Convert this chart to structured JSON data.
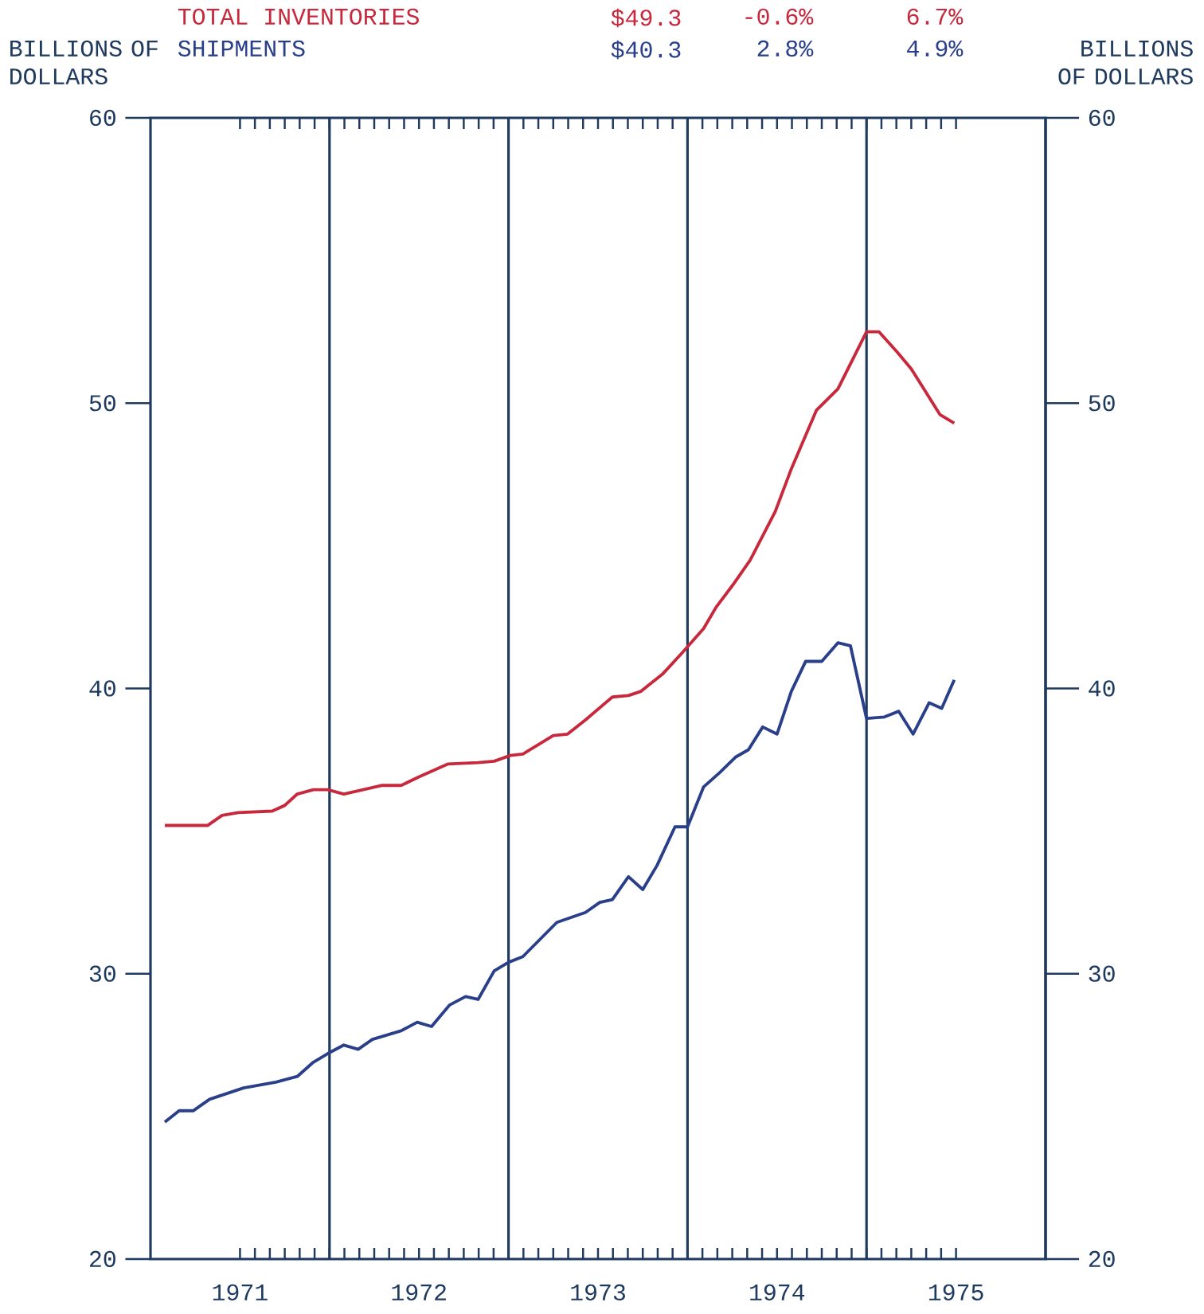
{
  "chart_data": {
    "type": "line",
    "ylabel": "BILLIONS OF DOLLARS",
    "y2label": "BILLIONS OF DOLLARS",
    "series": [
      {
        "name": "TOTAL INVENTORIES",
        "color": "#c8283c",
        "x": [
          1971.08,
          1971.32,
          1971.4,
          1971.49,
          1971.68,
          1971.75,
          1971.82,
          1971.91,
          1971.99,
          1972.08,
          1972.29,
          1972.4,
          1972.5,
          1972.66,
          1972.83,
          1972.92,
          1973.01,
          1973.08,
          1973.25,
          1973.33,
          1973.43,
          1973.58,
          1973.67,
          1973.74,
          1973.86,
          1973.97,
          1974.09,
          1974.16,
          1974.25,
          1974.35,
          1974.49,
          1974.58,
          1974.72,
          1974.84,
          1975.0,
          1975.07,
          1975.17,
          1975.25,
          1975.32,
          1975.41,
          1975.49
        ],
        "values": [
          35.2,
          35.2,
          35.55,
          35.65,
          35.7,
          35.9,
          36.3,
          36.45,
          36.45,
          36.3,
          36.6,
          36.6,
          36.9,
          37.35,
          37.4,
          37.45,
          37.65,
          37.7,
          38.35,
          38.4,
          38.9,
          39.7,
          39.75,
          39.9,
          40.5,
          41.25,
          42.1,
          42.85,
          43.6,
          44.5,
          46.2,
          47.7,
          49.75,
          50.5,
          52.5,
          52.5,
          51.8,
          51.2,
          50.5,
          49.6,
          49.3
        ]
      },
      {
        "name": "SHIPMENTS",
        "color": "#2a3f8a",
        "x": [
          1971.08,
          1971.16,
          1971.24,
          1971.33,
          1971.52,
          1971.7,
          1971.82,
          1971.91,
          1971.99,
          1972.08,
          1972.16,
          1972.24,
          1972.4,
          1972.49,
          1972.57,
          1972.67,
          1972.76,
          1972.83,
          1972.92,
          1973.0,
          1973.08,
          1973.27,
          1973.43,
          1973.51,
          1973.58,
          1973.67,
          1973.75,
          1973.83,
          1973.93,
          1974.0,
          1974.09,
          1974.18,
          1974.27,
          1974.34,
          1974.42,
          1974.5,
          1974.58,
          1974.66,
          1974.75,
          1974.84,
          1974.91,
          1975.0,
          1975.1,
          1975.18,
          1975.26,
          1975.35,
          1975.42,
          1975.49
        ],
        "values": [
          24.8,
          25.2,
          25.2,
          25.6,
          26.0,
          26.2,
          26.4,
          26.9,
          27.2,
          27.5,
          27.35,
          27.7,
          28.0,
          28.3,
          28.15,
          28.9,
          29.2,
          29.1,
          30.1,
          30.4,
          30.6,
          31.8,
          32.15,
          32.5,
          32.6,
          33.4,
          32.95,
          33.8,
          35.15,
          35.15,
          36.55,
          37.05,
          37.6,
          37.85,
          38.65,
          38.4,
          39.9,
          40.95,
          40.95,
          41.6,
          41.5,
          38.95,
          39.0,
          39.2,
          38.4,
          39.5,
          39.3,
          40.3
        ]
      }
    ],
    "xlim": [
      1971,
      1976
    ],
    "xticks": [
      {
        "value": 1971.5,
        "label": "1971"
      },
      {
        "value": 1972.5,
        "label": "1972"
      },
      {
        "value": 1973.5,
        "label": "1973"
      },
      {
        "value": 1974.5,
        "label": "1974"
      },
      {
        "value": 1975.5,
        "label": "1975"
      }
    ],
    "ylim": [
      20,
      60
    ],
    "yticks": [
      20,
      30,
      40,
      50,
      60
    ],
    "y2lim": [
      20,
      60
    ],
    "y2ticks": [
      20,
      30,
      40,
      50,
      60
    ],
    "ref_lines": [
      {
        "axis": "x",
        "value": 1972,
        "color": "#1f3a5f"
      },
      {
        "axis": "x",
        "value": 1973,
        "color": "#1f3a5f"
      },
      {
        "axis": "x",
        "value": 1974,
        "color": "#1f3a5f"
      },
      {
        "axis": "x",
        "value": 1975,
        "color": "#1f3a5f"
      }
    ],
    "annotations": [
      "$49.3",
      "-0.6%",
      "6.7%",
      "$40.3",
      "2.8%",
      "4.9%"
    ],
    "legend": "top",
    "marker": "none",
    "line_style": "solid"
  }
}
